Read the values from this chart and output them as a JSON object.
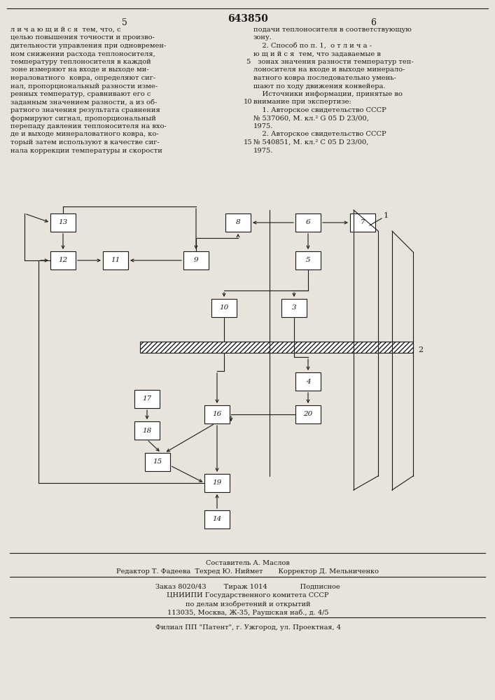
{
  "bg_color": "#e8e4dc",
  "page_num_left": "5",
  "patent_num": "643850",
  "page_num_right": "6",
  "footer_composer": "Составитель А. Маслов",
  "footer_editor": "Редактор Т. Фадеева  Техред Ю. Ниймет       Корректор Д. Мельниченко",
  "footer_order": "Заказ 8020/43        Тираж 1014               Подписное",
  "footer_org1": "ЦНИИПИ Государственного комитета СССР",
  "footer_org2": "по делам изобретений и открытий",
  "footer_addr": "113035, Москва, Ж-35, Раушская наб., д. 4/5",
  "footer_branch": "Филиал ПП \"Патент\", г. Ужгород, ул. Проектная, 4"
}
